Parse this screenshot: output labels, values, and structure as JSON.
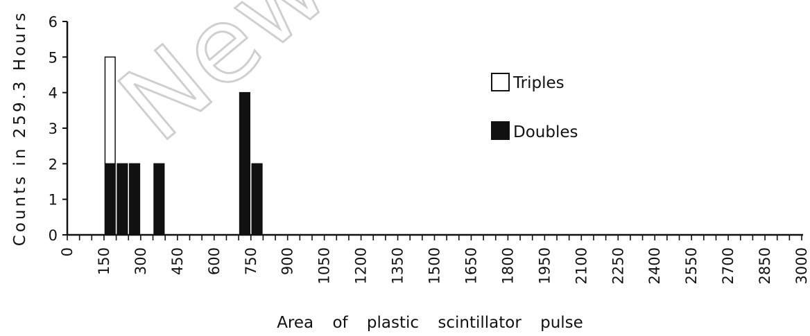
{
  "chart_data": {
    "type": "bar",
    "xlabel": "Area of plastic scintillator pulse",
    "ylabel": "Counts in 259.3 Hours",
    "ylim": [
      0,
      6
    ],
    "xlim": [
      0,
      3000
    ],
    "y_ticks": [
      "0",
      "1",
      "2",
      "3",
      "4",
      "5",
      "6"
    ],
    "x_ticks": [
      "0",
      "150",
      "300",
      "450",
      "600",
      "750",
      "900",
      "1050",
      "1200",
      "1350",
      "1500",
      "1650",
      "1800",
      "1950",
      "2100",
      "2250",
      "2400",
      "2550",
      "2700",
      "2850",
      "3000"
    ],
    "bin_width": 50,
    "stacked": true,
    "legend_position": "right",
    "series": [
      {
        "name": "Doubles",
        "fill": "#111111",
        "bins": [
          {
            "x": 175,
            "value": 2
          },
          {
            "x": 225,
            "value": 2
          },
          {
            "x": 275,
            "value": 2
          },
          {
            "x": 375,
            "value": 2
          },
          {
            "x": 725,
            "value": 4
          },
          {
            "x": 775,
            "value": 2
          }
        ]
      },
      {
        "name": "Triples",
        "fill": "#ffffff",
        "bins": [
          {
            "x": 175,
            "value": 3
          }
        ]
      }
    ]
  },
  "legend": {
    "triples": "Triples",
    "doubles": "Doubles"
  },
  "watermark": "New"
}
